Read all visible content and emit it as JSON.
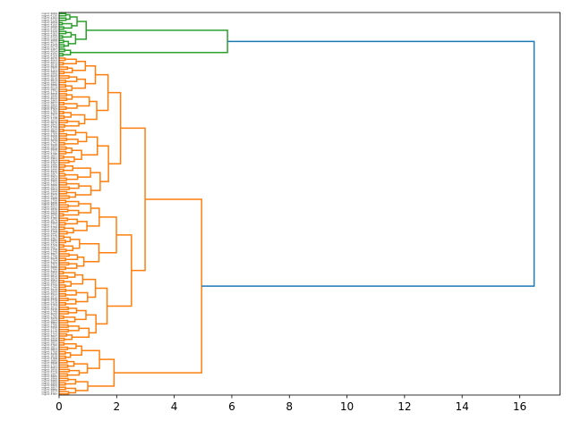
{
  "chart_data": {
    "type": "dendrogram",
    "orientation": "horizontal",
    "title": "",
    "xlabel": "",
    "ylabel": "",
    "xlim": [
      0,
      17.4
    ],
    "xticks": [
      0,
      2,
      4,
      6,
      8,
      10,
      12,
      14,
      16
    ],
    "xtick_labels": [
      "0",
      "2",
      "4",
      "6",
      "8",
      "10",
      "12",
      "14",
      "16"
    ],
    "grid": false,
    "colors": {
      "cluster_green": "#2ca02c",
      "cluster_orange": "#ff7f0e",
      "link_blue": "#1f77b4"
    },
    "leaves_green": [
      "mgmt 4084",
      "mgmt 4130",
      "mgmt 4191",
      "mgmt 4126",
      "mgmt 4059",
      "mgmt 4100",
      "mgmt 4099",
      "mgmt 4145",
      "mgmt 4120",
      "mgmt 4183",
      "mgmt 4155",
      "mgmt 4143",
      "mgmt 4088",
      "mgmt 4072",
      "mgmt 4129",
      "mgmt 4074",
      "mgmt 4187",
      "mgmt 4054",
      "mgmt 4131",
      "mgmt 4109"
    ],
    "leaves_orange": [
      "mgmt 4070",
      "mgmt 4069",
      "mgmt 4011",
      "mgmt 3818",
      "mgmt 3826",
      "mgmt 3721",
      "mgmt 3903",
      "mgmt 3906",
      "mgmt 4043",
      "mgmt 3816",
      "mgmt 3813",
      "mgmt 3845",
      "mgmt 3886",
      "mgmt 4019",
      "mgmt 3997",
      "mgmt 3779",
      "mgmt 3858",
      "mgmt 3846",
      "mgmt 4022",
      "mgmt 3965",
      "mgmt 3877",
      "mgmt 3860",
      "mgmt 4037",
      "mgmt 3763",
      "mgmt 3780",
      "mgmt 3934",
      "mgmt 3751",
      "mgmt 3738",
      "mgmt 3933",
      "mgmt 3870",
      "mgmt 3843",
      "mgmt 3750",
      "mgmt 3834",
      "mgmt 3802",
      "mgmt 3789",
      "mgmt 4006",
      "mgmt 3788",
      "mgmt 3839",
      "mgmt 3742",
      "mgmt 3949",
      "mgmt 3895",
      "mgmt 3898",
      "mgmt 3737",
      "mgmt 3796",
      "mgmt 3891",
      "mgmt 3961",
      "mgmt 3864",
      "mgmt 3797",
      "mgmt 3986",
      "mgmt 3755",
      "mgmt 3990",
      "mgmt 3932",
      "mgmt 3967",
      "mgmt 3921",
      "mgmt 3856",
      "mgmt 3905",
      "mgmt 3725",
      "mgmt 3866",
      "mgmt 3833",
      "mgmt 3954",
      "mgmt 3944",
      "mgmt 3926",
      "mgmt 4015",
      "mgmt 3988",
      "mgmt 3756",
      "mgmt 3896",
      "mgmt 3911",
      "mgmt 4002",
      "mgmt 3830",
      "mgmt 3958",
      "mgmt 3890",
      "mgmt 3970",
      "mgmt 3785",
      "mgmt 3879",
      "mgmt 3994",
      "mgmt 3773",
      "mgmt 3760",
      "mgmt 3849",
      "mgmt 3768",
      "mgmt 3942",
      "mgmt 3775",
      "mgmt 3962",
      "mgmt 3982",
      "mgmt 3924",
      "mgmt 3729",
      "mgmt 4007",
      "mgmt 3758",
      "mgmt 3748",
      "mgmt 3807",
      "mgmt 3748",
      "mgmt 4028",
      "mgmt 3764",
      "mgmt 3929",
      "mgmt 3753",
      "mgmt 3886",
      "mgmt 3790",
      "mgmt 3964",
      "mgmt 3930",
      "mgmt 3812",
      "mgmt 3829",
      "mgmt 3952",
      "mgmt 3892",
      "mgmt 3734",
      "mgmt 3749",
      "mgmt 3919",
      "mgmt 3899",
      "mgmt 3911",
      "mgmt 3972",
      "mgmt 3935",
      "mgmt 3776",
      "mgmt 3928",
      "mgmt 3794",
      "mgmt 3912",
      "mgmt 3916",
      "mgmt 3748",
      "mgmt 4032",
      "mgmt 3766",
      "mgmt 3939",
      "mgmt 3894",
      "mgmt 3882",
      "mgmt 3766",
      "mgmt 3950",
      "mgmt 3770",
      "mgmt 3775",
      "mgmt 3793",
      "mgmt 3827",
      "mgmt 3909",
      "mgmt 3898",
      "mgmt 3801",
      "mgmt 3762",
      "mgmt 3851",
      "mgmt 3853",
      "mgmt 3768",
      "mgmt 3936",
      "mgmt 3838",
      "mgmt 3768",
      "mgmt 3880",
      "mgmt 3898",
      "mgmt 3722",
      "mgmt 4001",
      "mgmt 3856",
      "mgmt 3774",
      "mgmt 3947",
      "mgmt 3885",
      "mgmt 3966",
      "mgmt 3982",
      "mgmt 3889",
      "mgmt 3805",
      "mgmt 3807",
      "mgmt 3889",
      "mgmt 3917",
      "mgmt 3787"
    ],
    "merges_green": [
      {
        "y": [
          0,
          1
        ],
        "height": 0.8
      },
      {
        "y": [
          2,
          3
        ],
        "height": 0.5
      },
      {
        "y": [
          2.5,
          4
        ],
        "height": 0.7
      },
      {
        "y": [
          0.5,
          3.25
        ],
        "height": 1.05
      },
      {
        "y": [
          5,
          6
        ],
        "height": 0.5
      },
      {
        "y": [
          7,
          8
        ],
        "height": 0.4
      },
      {
        "y": [
          6.5,
          7.5
        ],
        "height": 0.6
      },
      {
        "y": [
          9,
          10
        ],
        "height": 0.35
      },
      {
        "y": [
          7,
          9.5
        ],
        "height": 0.8
      },
      {
        "y": [
          11,
          12
        ],
        "height": 0.3
      },
      {
        "y": [
          13,
          14
        ],
        "height": 0.4
      },
      {
        "y": [
          12.5,
          13.5
        ],
        "height": 0.5
      },
      {
        "y": [
          8.25,
          13
        ],
        "height": 0.95
      },
      {
        "y": [
          1.875,
          10.6
        ],
        "height": 1.1
      },
      {
        "y": [
          15,
          16
        ],
        "height": 0.25
      },
      {
        "y": [
          17,
          18
        ],
        "height": 0.2
      },
      {
        "y": [
          15.5,
          17.5
        ],
        "height": 0.6
      },
      {
        "y": [
          19,
          16.5
        ],
        "height": 0.3
      },
      {
        "y": [
          6.2,
          17.75
        ],
        "height": 5.85
      }
    ],
    "root": {
      "height": 16.5
    },
    "orange_top": {
      "height": 4.95
    }
  }
}
